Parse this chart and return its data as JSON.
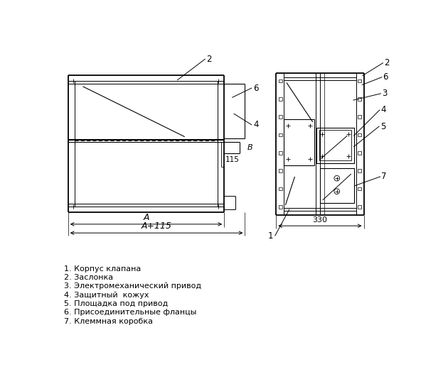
{
  "bg_color": "#ffffff",
  "line_color": "#000000",
  "legend": [
    "1. Корпус клапана",
    "2. Заслонка",
    "3. Электромеханический привод",
    "4. Защитный  кожух",
    "5. Площадка под привод",
    "6. Присоединительные фланцы",
    "7. Клеммная коробка"
  ]
}
